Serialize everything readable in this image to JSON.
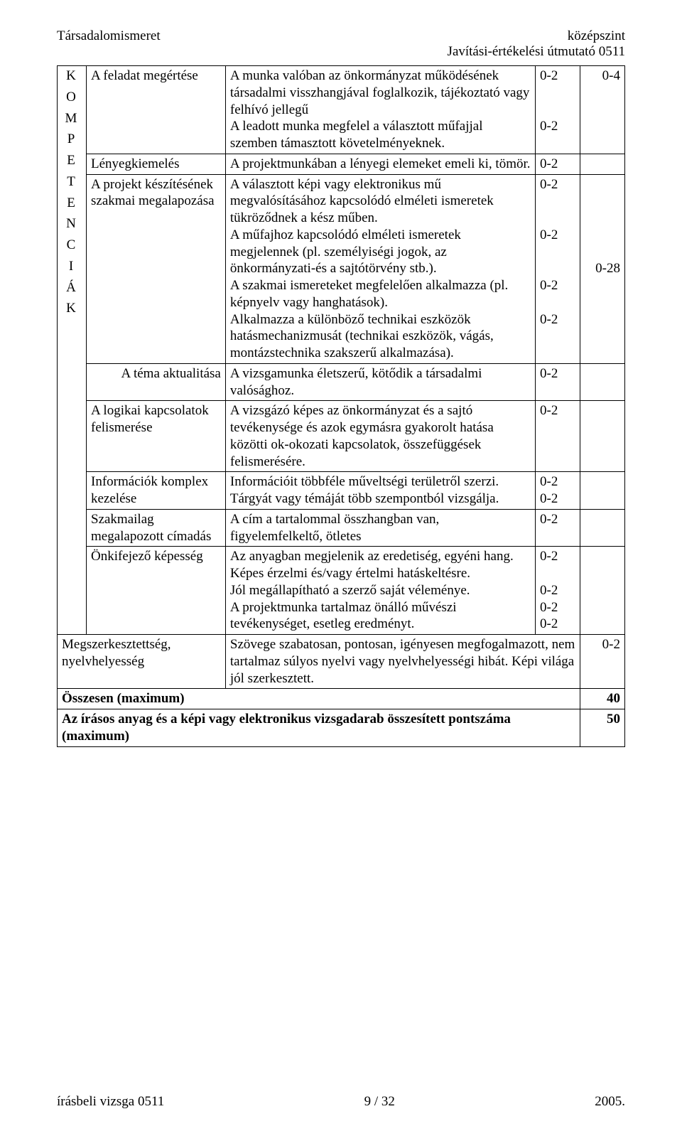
{
  "header": {
    "left": "Társadalomismeret",
    "right_line1": "középszint",
    "right_line2": "Javítási-értékelési útmutató 0511"
  },
  "vertical_label_letters": [
    "K",
    "O",
    "M",
    "P",
    "E",
    "T",
    "E",
    "N",
    "C",
    "I",
    "Á",
    "K"
  ],
  "rows": [
    {
      "c1": "A feladat megértése",
      "c2": "A munka valóban az önkormányzat működésének társadalmi visszhangjával foglalkozik, tájékoztató vagy felhívó jellegű\nA leadott munka megfelel a választott műfajjal szemben támasztott követelményeknek.",
      "c3_lines": [
        "0-2",
        "",
        "",
        "0-2"
      ],
      "c4": "0-4"
    },
    {
      "c1": "Lényegkiemelés",
      "c2": "A projektmunkában a lényegi elemeket emeli ki, tömör.",
      "c3_lines": [
        "0-2"
      ],
      "c4": ""
    },
    {
      "c1": "A projekt készítésének szakmai megalapozása",
      "c2": "A választott képi vagy elektronikus mű megvalósításához kapcsolódó elméleti ismeretek tükröződnek a kész műben.\nA műfajhoz kapcsolódó elméleti ismeretek megjelennek (pl. személyiségi jogok, az önkormányzati-és a sajtótörvény stb.).\nA szakmai ismereteket megfelelően alkalmazza (pl. képnyelv vagy hanghatások).\nAlkalmazza a különböző technikai eszközök hatásmechanizmusát (technikai eszközök, vágás, montázstechnika szakszerű alkalmazása).",
      "c3_lines": [
        "0-2",
        "",
        "",
        "0-2",
        "",
        "",
        "0-2",
        "",
        "0-2"
      ],
      "c4": "0-28"
    },
    {
      "c1": "A téma aktualitása",
      "c2": "A vizsgamunka életszerű, kötődik a társadalmi valósághoz.",
      "c3_lines": [
        "0-2"
      ],
      "c4": ""
    },
    {
      "c1": "A logikai kapcsolatok felismerése",
      "c2": "A vizsgázó képes az önkormányzat és a sajtó tevékenysége és azok egymásra gyakorolt hatása közötti ok-okozati kapcsolatok, összefüggések felismerésére.",
      "c3_lines": [
        "0-2"
      ],
      "c4": ""
    },
    {
      "c1": "Információk komplex kezelése",
      "c2": "Információit többféle műveltségi területről szerzi.\nTárgyát vagy témáját több szempontból vizsgálja.",
      "c3_lines": [
        "0-2",
        "0-2"
      ],
      "c4": ""
    },
    {
      "c1": "Szakmailag megalapozott címadás",
      "c2": "A cím a tartalommal összhangban van, figyelemfelkeltő, ötletes",
      "c3_lines": [
        "0-2"
      ],
      "c4": ""
    },
    {
      "c1": "Önkifejező képesség",
      "c2": "Az anyagban megjelenik az eredetiség, egyéni hang.\nKépes érzelmi és/vagy értelmi hatáskeltésre.\nJól megállapítható a szerző saját véleménye.\nA projektmunka tartalmaz önálló művészi tevékenységet, esetleg eredményt.",
      "c3_lines": [
        "0-2",
        "",
        "0-2",
        "0-2",
        "0-2"
      ],
      "c4": ""
    }
  ],
  "spanning_rows": [
    {
      "c1": "Megszerkesztettség, nyelvhelyesség",
      "c2": "Szövege szabatosan, pontosan, igényesen megfogalmazott, nem tartalmaz súlyos nyelvi vagy nyelvhelyességi hibát. Képi világa jól szerkesztett.",
      "c4": "0-2"
    }
  ],
  "totals": [
    {
      "label": "Összesen (maximum)",
      "value": "40"
    },
    {
      "label": "Az írásos anyag és a képi vagy elektronikus vizsgadarab összesített pontszáma (maximum)",
      "value": "50"
    }
  ],
  "footer": {
    "left": "írásbeli vizsga 0511",
    "center": "9 / 32",
    "right": "2005."
  },
  "c4_align_row3": "middle"
}
